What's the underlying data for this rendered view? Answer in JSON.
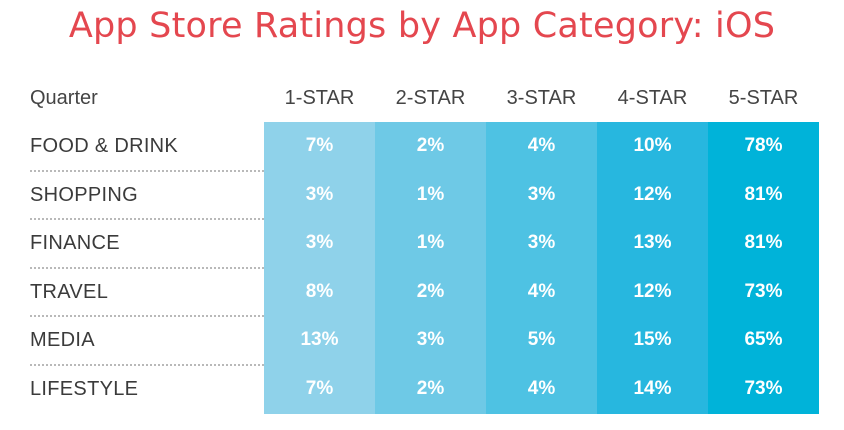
{
  "chart_data": {
    "type": "table",
    "title": "App Store Ratings by App Category: iOS",
    "row_header": "Quarter",
    "columns": [
      "1-STAR",
      "2-STAR",
      "3-STAR",
      "4-STAR",
      "5-STAR"
    ],
    "column_colors": [
      "#8fd2ea",
      "#6ec9e6",
      "#4ec2e3",
      "#27b7df",
      "#00b3d9"
    ],
    "rows": [
      {
        "label": "FOOD & DRINK",
        "values": [
          "7%",
          "2%",
          "4%",
          "10%",
          "78%"
        ]
      },
      {
        "label": "SHOPPING",
        "values": [
          "3%",
          "1%",
          "3%",
          "12%",
          "81%"
        ]
      },
      {
        "label": "FINANCE",
        "values": [
          "3%",
          "1%",
          "3%",
          "13%",
          "81%"
        ]
      },
      {
        "label": "TRAVEL",
        "values": [
          "8%",
          "2%",
          "4%",
          "12%",
          "73%"
        ]
      },
      {
        "label": "MEDIA",
        "values": [
          "13%",
          "3%",
          "5%",
          "15%",
          "65%"
        ]
      },
      {
        "label": "LIFESTYLE",
        "values": [
          "7%",
          "2%",
          "4%",
          "14%",
          "73%"
        ]
      }
    ],
    "title_color": "#e4474f"
  }
}
